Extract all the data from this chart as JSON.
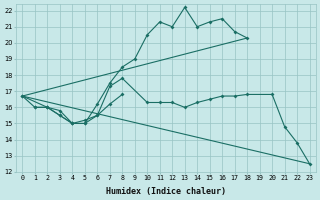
{
  "xlabel": "Humidex (Indice chaleur)",
  "bg_color": "#c8e8e8",
  "line_color": "#1a6e64",
  "grid_color": "#98c4c4",
  "xlim": [
    -0.5,
    23.5
  ],
  "ylim": [
    12,
    22.4
  ],
  "yticks": [
    12,
    13,
    14,
    15,
    16,
    17,
    18,
    19,
    20,
    21,
    22
  ],
  "xticks": [
    0,
    1,
    2,
    3,
    4,
    5,
    6,
    7,
    8,
    9,
    10,
    11,
    12,
    13,
    14,
    15,
    16,
    17,
    18,
    19,
    20,
    21,
    22,
    23
  ],
  "line1_x": [
    0,
    1,
    2,
    3,
    4,
    5,
    6,
    7,
    8,
    9,
    10,
    11,
    12,
    13,
    14,
    15,
    16,
    17,
    18
  ],
  "line1_y": [
    16.7,
    16.0,
    16.0,
    15.8,
    15.0,
    15.0,
    16.2,
    17.5,
    18.5,
    19.0,
    20.5,
    21.3,
    21.0,
    22.2,
    21.0,
    21.3,
    21.5,
    20.7,
    20.3
  ],
  "line2_x": [
    0,
    18
  ],
  "line2_y": [
    16.7,
    20.3
  ],
  "line3_x": [
    0,
    2,
    3,
    4,
    5,
    6,
    7,
    8,
    10,
    11,
    12,
    13,
    14,
    15,
    16,
    17,
    18,
    20,
    21,
    22,
    23
  ],
  "line3_y": [
    16.7,
    16.0,
    15.5,
    15.0,
    15.0,
    15.5,
    17.3,
    17.8,
    16.3,
    16.3,
    16.3,
    16.0,
    16.3,
    16.5,
    16.7,
    16.7,
    16.8,
    16.8,
    14.8,
    13.8,
    12.5
  ],
  "line4_x": [
    0,
    23
  ],
  "line4_y": [
    16.7,
    12.5
  ],
  "line5_x": [
    1,
    2,
    3,
    4,
    5,
    6,
    7,
    8
  ],
  "line5_y": [
    16.0,
    16.0,
    15.5,
    15.0,
    15.2,
    15.5,
    16.2,
    16.8
  ],
  "markersize": 2.0,
  "linewidth": 0.8,
  "xlabel_fontsize": 6.0,
  "tick_fontsize": 4.8
}
